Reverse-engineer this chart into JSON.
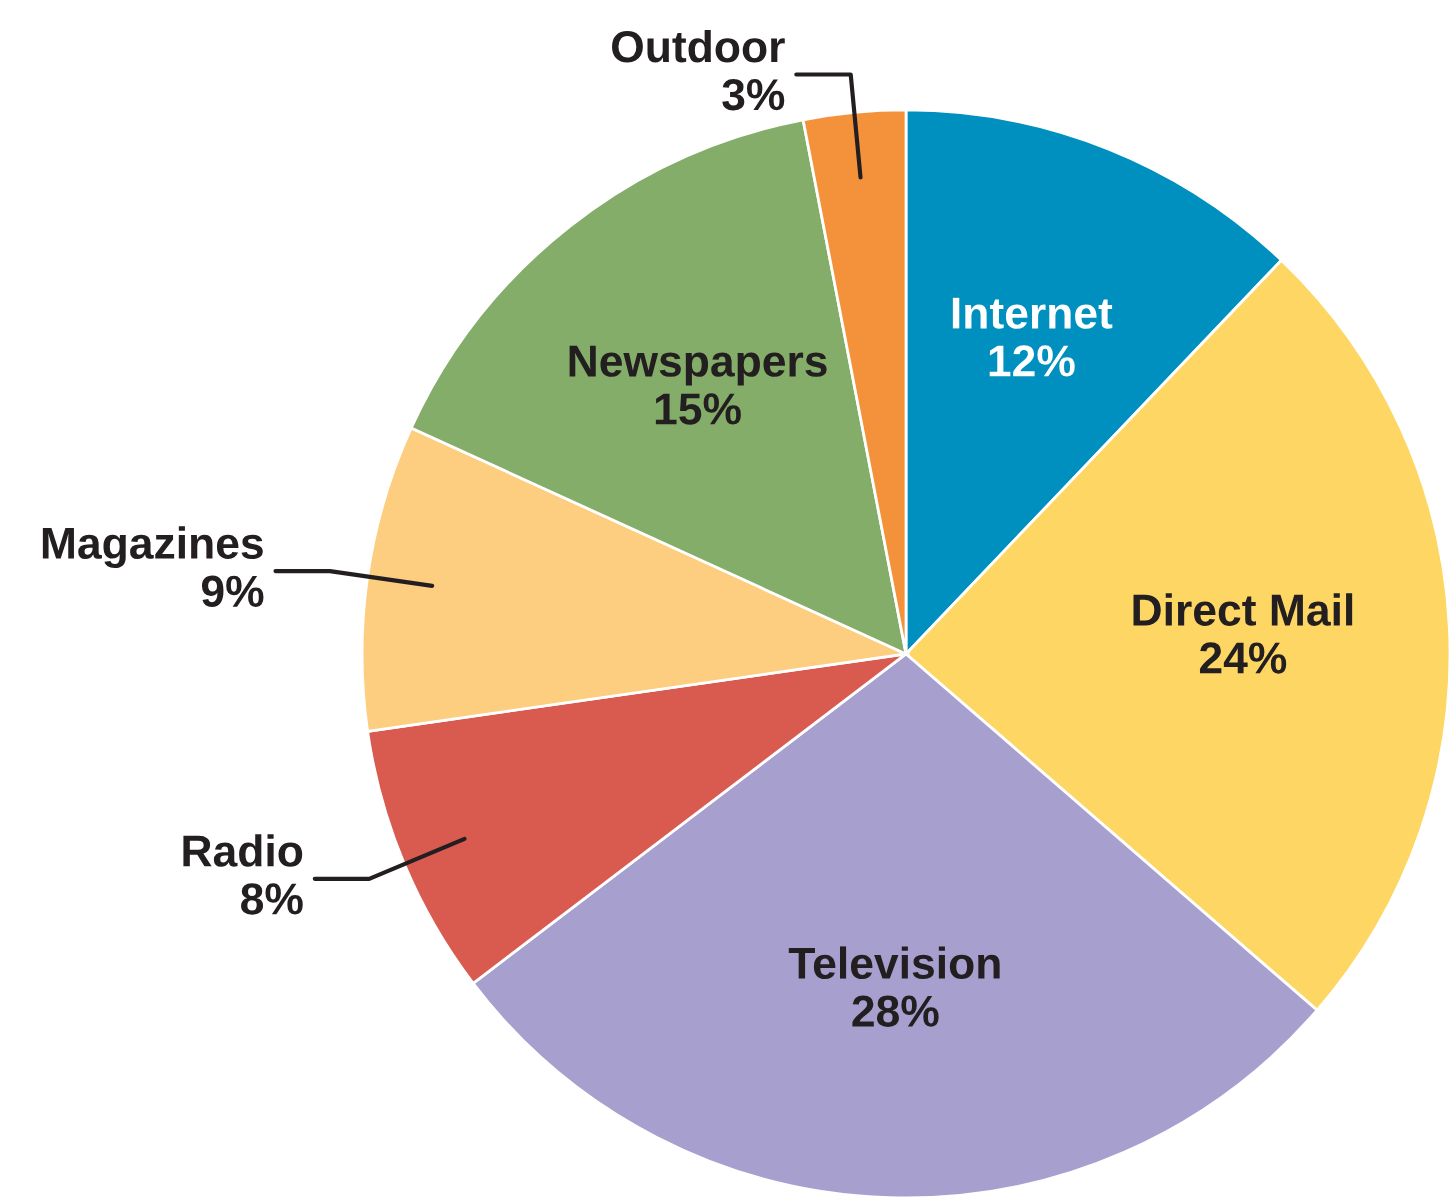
{
  "chart_data": {
    "type": "pie",
    "categories": [
      "Internet",
      "Direct Mail",
      "Television",
      "Radio",
      "Magazines",
      "Newspapers",
      "Outdoor"
    ],
    "values": [
      12,
      24,
      28,
      8,
      9,
      15,
      3
    ],
    "value_labels": [
      "12%",
      "24%",
      "28%",
      "8%",
      "9%",
      "15%",
      "3%"
    ],
    "colors": [
      "#0090bf",
      "#fdd663",
      "#a7a0cf",
      "#d95b50",
      "#fdcd80",
      "#85ad6a",
      "#f4923c"
    ]
  }
}
